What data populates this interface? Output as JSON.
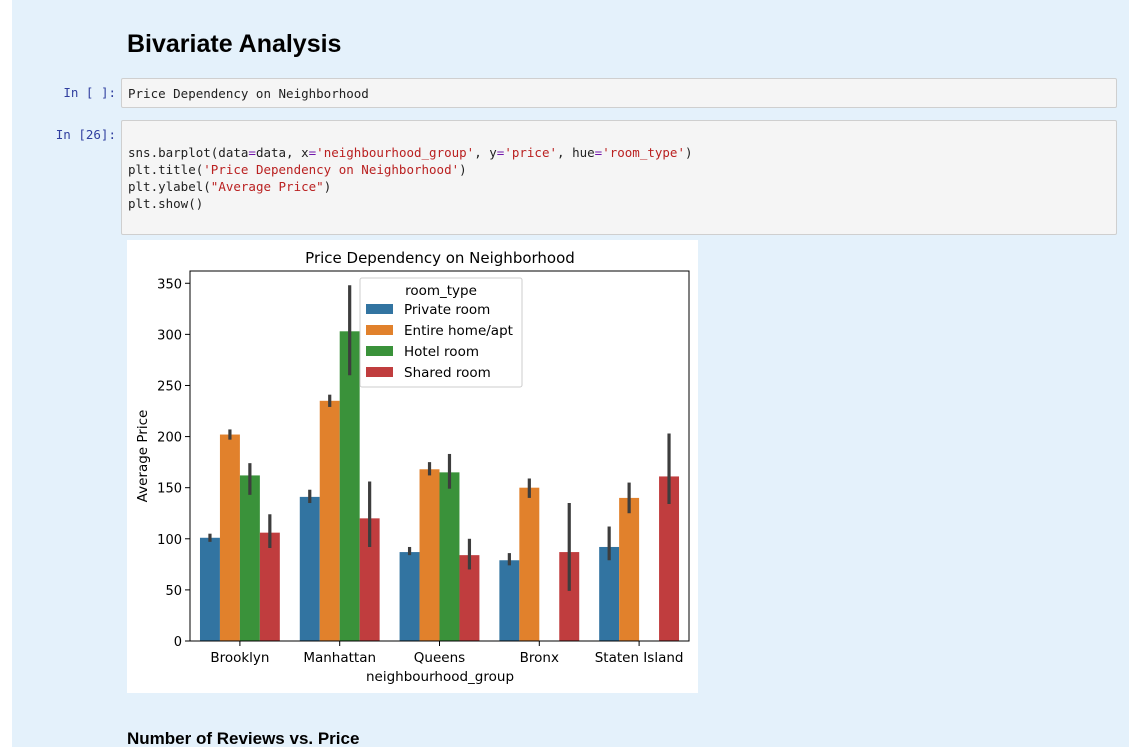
{
  "heading": "Bivariate Analysis",
  "cells": [
    {
      "prompt": "In [ ]:",
      "text": "Price Dependency on Neighborhood"
    },
    {
      "prompt": "In [26]:",
      "code": [
        [
          {
            "t": "sns.barplot(data"
          },
          {
            "t": "=",
            "c": "e"
          },
          {
            "t": "data, x"
          },
          {
            "t": "=",
            "c": "e"
          },
          {
            "t": "'neighbourhood_group'",
            "c": "s"
          },
          {
            "t": ", y"
          },
          {
            "t": "=",
            "c": "e"
          },
          {
            "t": "'price'",
            "c": "s"
          },
          {
            "t": ", hue"
          },
          {
            "t": "=",
            "c": "e"
          },
          {
            "t": "'room_type'",
            "c": "s"
          },
          {
            "t": ")"
          }
        ],
        [
          {
            "t": "plt.title("
          },
          {
            "t": "'Price Dependency on Neighborhood'",
            "c": "s"
          },
          {
            "t": ")"
          }
        ],
        [
          {
            "t": "plt.ylabel("
          },
          {
            "t": "\"Average Price\"",
            "c": "s"
          },
          {
            "t": ")"
          }
        ],
        [
          {
            "t": "plt.show()"
          }
        ]
      ]
    }
  ],
  "next_heading": "Number of Reviews vs. Price",
  "chart_data": {
    "type": "bar",
    "title": "Price Dependency on Neighborhood",
    "xlabel": "neighbourhood_group",
    "ylabel": "Average Price",
    "ylim": [
      0,
      362
    ],
    "yticks": [
      0,
      50,
      100,
      150,
      200,
      250,
      300,
      350
    ],
    "categories": [
      "Brooklyn",
      "Manhattan",
      "Queens",
      "Bronx",
      "Staten Island"
    ],
    "legend": {
      "title": "room_type",
      "placement": "upper-center"
    },
    "series": [
      {
        "name": "Private room",
        "color": "#3274a1",
        "values": [
          101,
          141,
          87,
          79,
          92
        ],
        "ci": [
          [
            97,
            105
          ],
          [
            135,
            148
          ],
          [
            84,
            92
          ],
          [
            74,
            86
          ],
          [
            79,
            112
          ]
        ]
      },
      {
        "name": "Entire home/apt",
        "color": "#e1812c",
        "values": [
          202,
          235,
          168,
          150,
          140
        ],
        "ci": [
          [
            197,
            207
          ],
          [
            229,
            241
          ],
          [
            162,
            175
          ],
          [
            140,
            159
          ],
          [
            125,
            155
          ]
        ]
      },
      {
        "name": "Hotel room",
        "color": "#3a923a",
        "values": [
          162,
          303,
          165,
          null,
          null
        ],
        "ci": [
          [
            143,
            174
          ],
          [
            260,
            348
          ],
          [
            149,
            183
          ],
          null,
          null
        ]
      },
      {
        "name": "Shared room",
        "color": "#c03d3e",
        "values": [
          106,
          120,
          84,
          87,
          161
        ],
        "ci": [
          [
            91,
            124
          ],
          [
            92,
            156
          ],
          [
            70,
            100
          ],
          [
            49,
            135
          ],
          [
            134,
            203
          ]
        ]
      }
    ]
  }
}
